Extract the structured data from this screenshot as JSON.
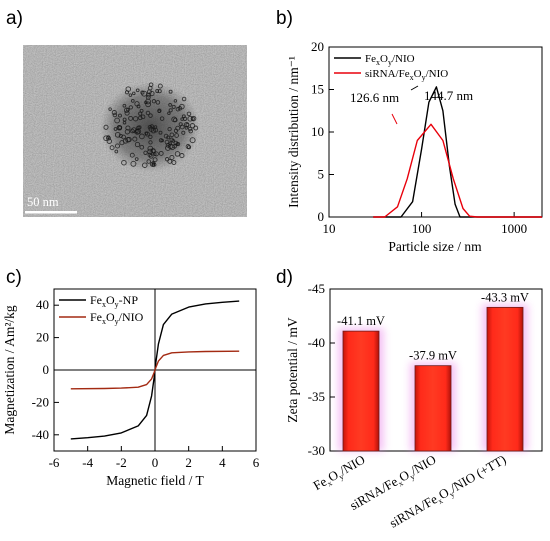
{
  "panel_labels": [
    "a)",
    "b)",
    "c)",
    "d)"
  ],
  "tem": {
    "scale_bar_label": "50 nm"
  },
  "chart_data": [
    {
      "panel": "b",
      "type": "line",
      "xlabel": "Particle size / nm",
      "ylabel": "Intensity distribution / nm⁻¹",
      "xscale": "log",
      "xlim": [
        10,
        2000
      ],
      "ylim": [
        0,
        20
      ],
      "xticks": [
        "10",
        "100",
        "1000"
      ],
      "yticks": [
        "0",
        "5",
        "10",
        "15",
        "20"
      ],
      "legend_position": "top-left",
      "series": [
        {
          "name": "FexOy/NIO",
          "color": "#000000",
          "x": [
            30,
            60,
            80,
            100,
            120,
            144.7,
            170,
            200,
            230,
            260,
            300,
            400,
            2000
          ],
          "y": [
            0,
            0,
            1.8,
            8.0,
            13.5,
            15.3,
            12.5,
            6.0,
            1.5,
            0,
            0,
            0,
            0
          ],
          "annotation": "144.7 nm"
        },
        {
          "name": "siRNA/FexOy/NIO",
          "color": "#e8000b",
          "x": [
            30,
            40,
            55,
            70,
            90,
            126.6,
            170,
            220,
            280,
            330,
            400,
            2000
          ],
          "y": [
            0,
            0,
            1.2,
            4.5,
            9.0,
            10.9,
            9.0,
            4.5,
            1.0,
            0.1,
            0,
            0
          ],
          "annotation": "126.6 nm"
        }
      ]
    },
    {
      "panel": "c",
      "type": "line",
      "xlabel": "Magnetic field / T",
      "ylabel": "Magnetization / Am²/kg",
      "xlim": [
        -6,
        6
      ],
      "ylim": [
        -50,
        50
      ],
      "xticks": [
        "-6",
        "-4",
        "-2",
        "0",
        "2",
        "4",
        "6"
      ],
      "yticks": [
        "-40",
        "-20",
        "0",
        "20",
        "40"
      ],
      "legend_position": "top-left",
      "series": [
        {
          "name": "FexOy-NP",
          "color": "#000000",
          "x": [
            -5,
            -4,
            -3,
            -2,
            -1,
            -0.5,
            -0.2,
            -0.05,
            0,
            0.05,
            0.2,
            0.5,
            1,
            2,
            3,
            4,
            5
          ],
          "y": [
            -42.5,
            -41.8,
            -40.8,
            -38.8,
            -34.5,
            -28.0,
            -16.0,
            -4.5,
            0,
            4.5,
            16.0,
            28.0,
            34.5,
            38.8,
            40.8,
            41.8,
            42.5
          ]
        },
        {
          "name": "FexOy/NIO",
          "color": "#a32a12",
          "x": [
            -5,
            -3,
            -2,
            -1,
            -0.5,
            -0.2,
            -0.05,
            0,
            0.05,
            0.2,
            0.5,
            1,
            2,
            3,
            5
          ],
          "y": [
            -11.6,
            -11.4,
            -11.2,
            -10.6,
            -9.0,
            -5.5,
            -1.5,
            0,
            1.5,
            5.5,
            9.0,
            10.6,
            11.2,
            11.4,
            11.6
          ]
        }
      ]
    },
    {
      "panel": "d",
      "type": "bar",
      "ylabel": "Zeta potential / mV",
      "ylim": [
        -30,
        -45
      ],
      "yticks": [
        "-30",
        "-35",
        "-40",
        "-45"
      ],
      "categories": [
        "FexOy/NIO",
        "siRNA/FexOy/NIO",
        "siRNA/FexOy/NIO (+TT)"
      ],
      "values": [
        -41.1,
        -37.9,
        -43.3
      ],
      "value_labels": [
        "-41.1 mV",
        "-37.9 mV",
        "-43.3 mV"
      ],
      "bar_color": "#ff2a1a"
    }
  ]
}
